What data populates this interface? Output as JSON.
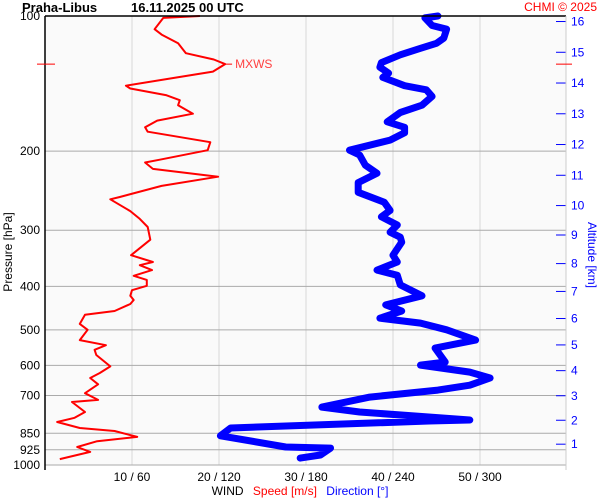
{
  "header": {
    "station": "Praha-Libus",
    "datetime": "16.11.2025 00 UTC",
    "credit": "CHMI © 2025"
  },
  "chart_data": {
    "type": "line",
    "title": "Praha-Libus    16.11.2025 00 UTC",
    "ylabel": "Pressure [hPa]",
    "ylabel_right": "Altitude [km]",
    "xlabel_parts": [
      "WIND",
      "Speed [m/s]",
      "Direction [°]"
    ],
    "y_scale": "log",
    "ylim": [
      1000,
      100
    ],
    "y_ticks": [
      100,
      200,
      300,
      400,
      500,
      600,
      700,
      850,
      925,
      1000
    ],
    "y_right_ticks": [
      1,
      2,
      3,
      4,
      5,
      6,
      7,
      8,
      9,
      10,
      11,
      12,
      13,
      14,
      15,
      16
    ],
    "x_speed_lim": [
      0,
      60
    ],
    "x_dir_lim": [
      0,
      360
    ],
    "x_ticks": [
      {
        "speed": 10,
        "dir": 60,
        "label": "10 / 60"
      },
      {
        "speed": 20,
        "dir": 120,
        "label": "20 / 120"
      },
      {
        "speed": 30,
        "dir": 180,
        "label": "30 / 180"
      },
      {
        "speed": 40,
        "dir": 240,
        "label": "40 / 240"
      },
      {
        "speed": 50,
        "dir": 300,
        "label": "50 / 300"
      }
    ],
    "grid": true,
    "colors": {
      "speed": "#ff0000",
      "direction": "#0000ff",
      "altitude_axis": "#0000ff"
    },
    "annotation": {
      "label": "MXWS",
      "pressure": 128,
      "speed": 20.7
    },
    "series": [
      {
        "name": "Speed [m/s]",
        "unit": "m/s",
        "points": [
          [
            100,
            17.8
          ],
          [
            101,
            13.6
          ],
          [
            107,
            12.6
          ],
          [
            110,
            13.4
          ],
          [
            115,
            15.3
          ],
          [
            121,
            16.2
          ],
          [
            125,
            19.4
          ],
          [
            128,
            20.7
          ],
          [
            133,
            19.3
          ],
          [
            137,
            15.2
          ],
          [
            143,
            9.3
          ],
          [
            145,
            9.8
          ],
          [
            150,
            13.9
          ],
          [
            154,
            15.5
          ],
          [
            158,
            15.3
          ],
          [
            165,
            17.0
          ],
          [
            171,
            12.9
          ],
          [
            177,
            11.5
          ],
          [
            181,
            11.8
          ],
          [
            191,
            19.0
          ],
          [
            199,
            18.7
          ],
          [
            209,
            13.2
          ],
          [
            212,
            11.5
          ],
          [
            219,
            12.4
          ],
          [
            228,
            19.9
          ],
          [
            239,
            13.4
          ],
          [
            253,
            8.6
          ],
          [
            256,
            7.5
          ],
          [
            272,
            9.8
          ],
          [
            283,
            10.9
          ],
          [
            295,
            11.8
          ],
          [
            315,
            12.1
          ],
          [
            341,
            9.9
          ],
          [
            353,
            12.4
          ],
          [
            359,
            10.9
          ],
          [
            368,
            12.3
          ],
          [
            379,
            10.2
          ],
          [
            387,
            11.7
          ],
          [
            399,
            11.7
          ],
          [
            408,
            10.0
          ],
          [
            420,
            9.8
          ],
          [
            429,
            10.2
          ],
          [
            438,
            9.8
          ],
          [
            454,
            8.0
          ],
          [
            463,
            4.6
          ],
          [
            485,
            4.0
          ],
          [
            500,
            4.9
          ],
          [
            527,
            4.0
          ],
          [
            541,
            7.0
          ],
          [
            554,
            5.7
          ],
          [
            569,
            5.9
          ],
          [
            603,
            7.5
          ],
          [
            624,
            6.3
          ],
          [
            640,
            5.2
          ],
          [
            661,
            6.1
          ],
          [
            692,
            4.6
          ],
          [
            716,
            6.1
          ],
          [
            724,
            3.1
          ],
          [
            762,
            4.6
          ],
          [
            785,
            3.4
          ],
          [
            802,
            1.4
          ],
          [
            827,
            4.0
          ],
          [
            840,
            8.0
          ],
          [
            866,
            10.6
          ],
          [
            885,
            6.0
          ],
          [
            912,
            3.7
          ],
          [
            935,
            5.2
          ],
          [
            970,
            1.7
          ]
        ]
      },
      {
        "name": "Direction [°]",
        "unit": "deg",
        "points": [
          [
            100,
            271
          ],
          [
            101,
            262
          ],
          [
            105,
            267
          ],
          [
            107,
            277
          ],
          [
            112,
            275
          ],
          [
            115,
            270
          ],
          [
            118,
            259
          ],
          [
            122,
            245
          ],
          [
            127,
            232
          ],
          [
            130,
            231
          ],
          [
            134,
            237
          ],
          [
            137,
            233
          ],
          [
            143,
            248
          ],
          [
            146,
            263
          ],
          [
            151,
            267
          ],
          [
            158,
            260
          ],
          [
            164,
            245
          ],
          [
            172,
            236
          ],
          [
            177,
            248
          ],
          [
            182,
            248
          ],
          [
            189,
            238
          ],
          [
            199,
            210
          ],
          [
            204,
            217
          ],
          [
            215,
            221
          ],
          [
            224,
            229
          ],
          [
            235,
            216
          ],
          [
            247,
            216
          ],
          [
            260,
            234
          ],
          [
            271,
            238
          ],
          [
            280,
            232
          ],
          [
            292,
            243
          ],
          [
            303,
            238
          ],
          [
            311,
            245
          ],
          [
            319,
            246
          ],
          [
            341,
            240
          ],
          [
            353,
            243
          ],
          [
            368,
            229
          ],
          [
            378,
            243
          ],
          [
            397,
            245
          ],
          [
            420,
            260
          ],
          [
            440,
            235
          ],
          [
            454,
            246
          ],
          [
            471,
            231
          ],
          [
            483,
            259
          ],
          [
            500,
            277
          ],
          [
            527,
            297
          ],
          [
            549,
            269
          ],
          [
            590,
            276
          ],
          [
            599,
            259
          ],
          [
            621,
            293
          ],
          [
            640,
            307
          ],
          [
            664,
            293
          ],
          [
            681,
            271
          ],
          [
            706,
            224
          ],
          [
            743,
            191
          ],
          [
            762,
            217
          ],
          [
            794,
            293
          ],
          [
            798,
            265
          ],
          [
            827,
            128
          ],
          [
            861,
            121
          ],
          [
            912,
            166
          ],
          [
            917,
            197
          ],
          [
            950,
            190
          ],
          [
            965,
            176
          ]
        ]
      }
    ]
  }
}
